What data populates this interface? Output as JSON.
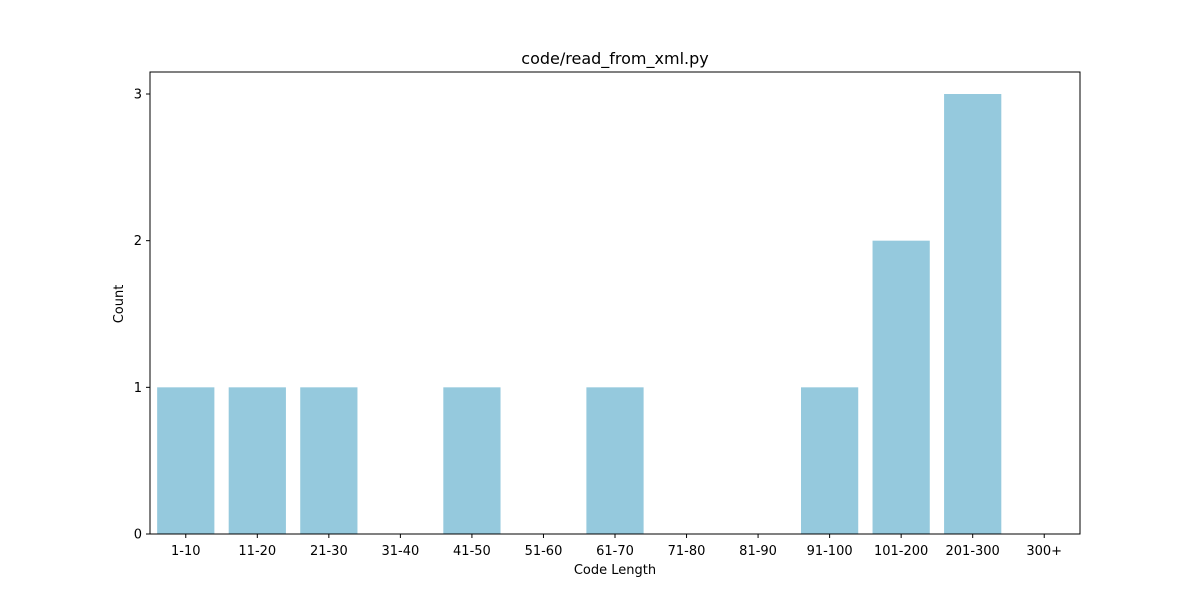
{
  "chart_data": {
    "type": "bar",
    "title": "code/read_from_xml.py",
    "xlabel": "Code Length",
    "ylabel": "Count",
    "categories": [
      "1-10",
      "11-20",
      "21-30",
      "31-40",
      "41-50",
      "51-60",
      "61-70",
      "71-80",
      "81-90",
      "91-100",
      "101-200",
      "201-300",
      "300+"
    ],
    "values": [
      1,
      1,
      1,
      0,
      1,
      0,
      1,
      0,
      0,
      1,
      2,
      3,
      0
    ],
    "ylim": [
      0,
      3.15
    ],
    "yticks": [
      0,
      1,
      2,
      3
    ],
    "grid": false,
    "bar_color": "#95c9dd"
  }
}
